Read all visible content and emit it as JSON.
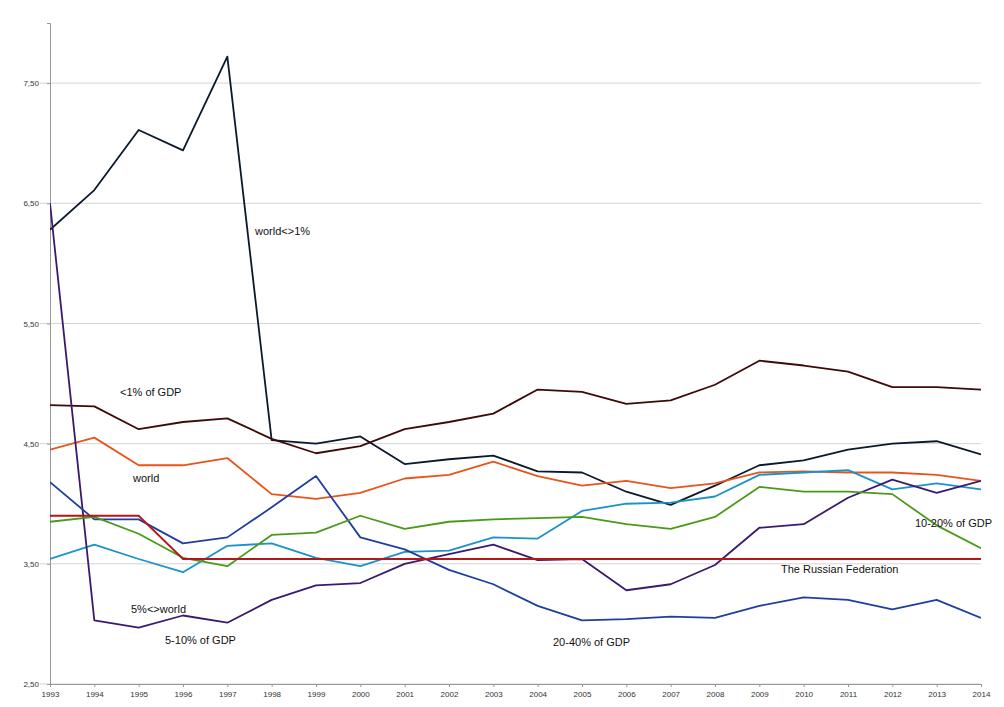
{
  "chart_data": {
    "type": "line",
    "x": [
      1993,
      1994,
      1995,
      1996,
      1997,
      1998,
      1999,
      2000,
      2001,
      2002,
      2003,
      2004,
      2005,
      2006,
      2007,
      2008,
      2009,
      2010,
      2011,
      2012,
      2013,
      2014
    ],
    "xlim": [
      1993,
      2014
    ],
    "xticks": [
      1993,
      1994,
      1995,
      1996,
      1997,
      1998,
      1999,
      2000,
      2001,
      2002,
      2003,
      2004,
      2005,
      2006,
      2007,
      2008,
      2009,
      2010,
      2011,
      2012,
      2013,
      2014
    ],
    "ylim": [
      2.5,
      8.0
    ],
    "yticks": [
      {
        "value": 2.5,
        "label": "2,50"
      },
      {
        "value": 3.5,
        "label": "3,50"
      },
      {
        "value": 4.5,
        "label": "4,50"
      },
      {
        "value": 5.5,
        "label": "5,50"
      },
      {
        "value": 6.5,
        "label": "6,50"
      },
      {
        "value": 7.5,
        "label": "7,50"
      }
    ],
    "grid": true,
    "series": [
      {
        "name": "world<>1%",
        "color": "#0b1a2a",
        "values": [
          6.28,
          6.61,
          7.11,
          6.94,
          7.72,
          4.53,
          4.5,
          4.56,
          4.33,
          4.37,
          4.4,
          4.27,
          4.26,
          4.1,
          3.99,
          4.15,
          4.32,
          4.36,
          4.45,
          4.5,
          4.52,
          4.41
        ]
      },
      {
        "name": "<1% of GDP",
        "color": "#3d0a0a",
        "values": [
          4.82,
          4.81,
          4.62,
          4.68,
          4.71,
          4.54,
          4.42,
          4.48,
          4.62,
          4.68,
          4.75,
          4.95,
          4.93,
          4.83,
          4.86,
          4.99,
          5.19,
          5.15,
          5.1,
          4.97,
          4.97,
          4.95
        ]
      },
      {
        "name": "world",
        "color": "#e8541a",
        "values": [
          4.45,
          4.55,
          4.32,
          4.32,
          4.38,
          4.08,
          4.04,
          4.09,
          4.21,
          4.24,
          4.35,
          4.23,
          4.15,
          4.19,
          4.13,
          4.17,
          4.26,
          4.27,
          4.26,
          4.26,
          4.24,
          4.19
        ]
      },
      {
        "name": "5%<>world",
        "color": "#1a93c8",
        "values": [
          3.54,
          3.66,
          3.54,
          3.43,
          3.65,
          3.67,
          3.55,
          3.48,
          3.6,
          3.61,
          3.72,
          3.71,
          3.94,
          4.0,
          4.01,
          4.06,
          4.24,
          4.26,
          4.28,
          4.12,
          4.17,
          4.12
        ]
      },
      {
        "name": "5-10% of GDP",
        "color": "#3b1a6e",
        "values": [
          6.5,
          3.03,
          2.97,
          3.07,
          3.01,
          3.2,
          3.32,
          3.34,
          3.5,
          3.58,
          3.66,
          3.53,
          3.54,
          3.28,
          3.33,
          3.49,
          3.8,
          3.83,
          4.05,
          4.2,
          4.09,
          4.19
        ]
      },
      {
        "name": "20-40% of GDP",
        "color": "#1f3f9f",
        "values": [
          4.18,
          3.87,
          3.87,
          3.67,
          3.72,
          3.97,
          4.23,
          3.72,
          3.62,
          3.45,
          3.33,
          3.15,
          3.03,
          3.04,
          3.06,
          3.05,
          3.15,
          3.22,
          3.2,
          3.12,
          3.2,
          3.05
        ]
      },
      {
        "name": "10-20% of GDP",
        "color": "#4a9a1a",
        "values": [
          3.85,
          3.89,
          3.75,
          3.55,
          3.48,
          3.74,
          3.76,
          3.9,
          3.79,
          3.85,
          3.87,
          3.88,
          3.89,
          3.83,
          3.79,
          3.89,
          4.14,
          4.1,
          4.1,
          4.08,
          3.82,
          3.63
        ]
      },
      {
        "name": "The Russian Federation",
        "color": "#b3161b",
        "values": [
          3.9,
          3.9,
          3.9,
          3.54,
          3.54,
          3.54,
          3.54,
          3.54,
          3.54,
          3.54,
          3.54,
          3.54,
          3.54,
          3.54,
          3.54,
          3.54,
          3.54,
          3.54,
          3.54,
          3.54,
          3.54,
          3.54
        ]
      }
    ]
  }
}
